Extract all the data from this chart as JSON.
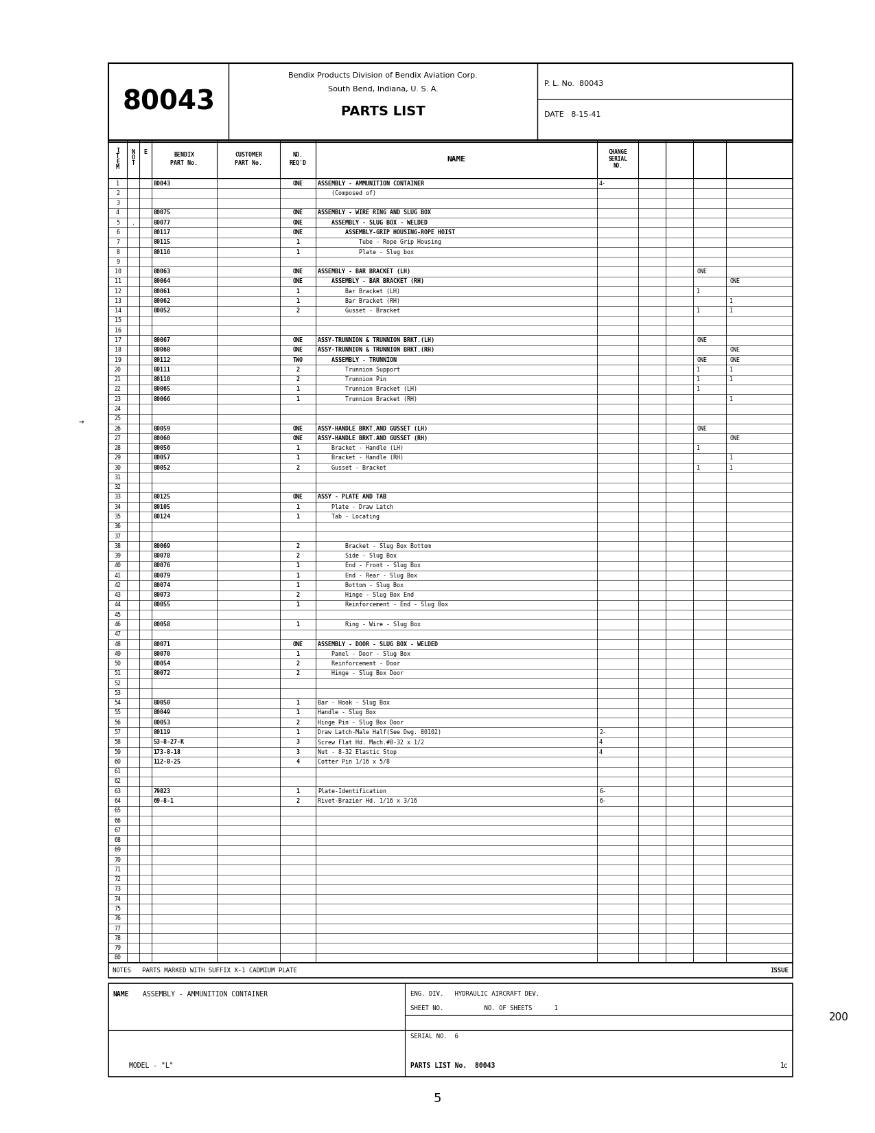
{
  "doc_number": "80043",
  "company_line1": "Bendix Products Division of Bendix Aviation Corp.",
  "company_line2": "South Bend, Indiana, U. S. A.",
  "title": "PARTS LIST",
  "pl_no": "P. L. No.  80043",
  "date": "DATE   8-15-41",
  "rows": [
    {
      "item": "1",
      "note": "",
      "bendix": "80043",
      "reqd": "ONE",
      "name": "ASSEMBLY - AMMUNITION CONTAINER",
      "change": "4-",
      "c3": "",
      "c4": ""
    },
    {
      "item": "2",
      "note": "",
      "bendix": "",
      "reqd": "",
      "name": "    (Composed of)",
      "change": "",
      "c3": "",
      "c4": ""
    },
    {
      "item": "3",
      "note": "",
      "bendix": "",
      "reqd": "",
      "name": "",
      "change": "",
      "c3": "",
      "c4": ""
    },
    {
      "item": "4",
      "note": "",
      "bendix": "80075",
      "reqd": "ONE",
      "name": "ASSEMBLY - WIRE RING AND SLUG BOX",
      "change": "",
      "c3": "",
      "c4": ""
    },
    {
      "item": "5",
      "note": ".",
      "bendix": "80077",
      "reqd": "ONE",
      "name": "    ASSEMBLY - SLUG BOX - WELDED",
      "change": "",
      "c3": "",
      "c4": ""
    },
    {
      "item": "6",
      "note": "",
      "bendix": "80117",
      "reqd": "ONE",
      "name": "        ASSEMBLY-GRIP HOUSING-ROPE HOIST",
      "change": "",
      "c3": "",
      "c4": ""
    },
    {
      "item": "7",
      "note": "",
      "bendix": "80115",
      "reqd": "1",
      "name": "            Tube - Rope Grip Housing",
      "change": "",
      "c3": "",
      "c4": ""
    },
    {
      "item": "8",
      "note": "",
      "bendix": "80116",
      "reqd": "1",
      "name": "            Plate - Slug box",
      "change": "",
      "c3": "",
      "c4": ""
    },
    {
      "item": "9",
      "note": "",
      "bendix": "",
      "reqd": "",
      "name": "",
      "change": "",
      "c3": "",
      "c4": ""
    },
    {
      "item": "10",
      "note": "",
      "bendix": "80063",
      "reqd": "ONE",
      "name": "ASSEMBLY - BAR BRACKET (LH)",
      "change": "",
      "c3": "ONE",
      "c4": ""
    },
    {
      "item": "11",
      "note": "",
      "bendix": "80064",
      "reqd": "ONE",
      "name": "    ASSEMBLY - BAR BRACKET (RH)",
      "change": "",
      "c3": "",
      "c4": "ONE"
    },
    {
      "item": "12",
      "note": "",
      "bendix": "80061",
      "reqd": "1",
      "name": "        Bar Bracket (LH)",
      "change": "",
      "c3": "1",
      "c4": ""
    },
    {
      "item": "13",
      "note": "",
      "bendix": "80062",
      "reqd": "1",
      "name": "        Bar Bracket (RH)",
      "change": "",
      "c3": "",
      "c4": "1"
    },
    {
      "item": "14",
      "note": "",
      "bendix": "80052",
      "reqd": "2",
      "name": "        Gusset - Bracket",
      "change": "",
      "c3": "1",
      "c4": "1"
    },
    {
      "item": "15",
      "note": "",
      "bendix": "",
      "reqd": "",
      "name": "",
      "change": "",
      "c3": "",
      "c4": ""
    },
    {
      "item": "16",
      "note": "",
      "bendix": "",
      "reqd": "",
      "name": "",
      "change": "",
      "c3": "",
      "c4": ""
    },
    {
      "item": "17",
      "note": "",
      "bendix": "80067",
      "reqd": "ONE",
      "name": "ASSY-TRUNNION & TRUNNION BRKT.(LH)",
      "change": "",
      "c3": "ONE",
      "c4": ""
    },
    {
      "item": "18",
      "note": "",
      "bendix": "80068",
      "reqd": "ONE",
      "name": "ASSY-TRUNNION & TRUNNION BRKT.(RH)",
      "change": "",
      "c3": "",
      "c4": "ONE"
    },
    {
      "item": "19",
      "note": "",
      "bendix": "80112",
      "reqd": "TWO",
      "name": "    ASSEMBLY - TRUNNION",
      "change": "",
      "c3": "ONE",
      "c4": "ONE"
    },
    {
      "item": "20",
      "note": "",
      "bendix": "80111",
      "reqd": "2",
      "name": "        Trunnion Support",
      "change": "",
      "c3": "1",
      "c4": "1"
    },
    {
      "item": "21",
      "note": "",
      "bendix": "80110",
      "reqd": "2",
      "name": "        Trunnion Pin",
      "change": "",
      "c3": "1",
      "c4": "1"
    },
    {
      "item": "22",
      "note": "",
      "bendix": "80065",
      "reqd": "1",
      "name": "        Trunnion Bracket (LH)",
      "change": "",
      "c3": "1",
      "c4": ""
    },
    {
      "item": "23",
      "note": "",
      "bendix": "80066",
      "reqd": "1",
      "name": "        Trunnion Bracket (RH)",
      "change": "",
      "c3": "",
      "c4": "1"
    },
    {
      "item": "24",
      "note": "",
      "bendix": "",
      "reqd": "",
      "name": "",
      "change": "",
      "c3": "",
      "c4": ""
    },
    {
      "item": "25",
      "note": "",
      "bendix": "",
      "reqd": "",
      "name": "",
      "change": "",
      "c3": "",
      "c4": ""
    },
    {
      "item": "26",
      "note": "",
      "bendix": "80059",
      "reqd": "ONE",
      "name": "ASSY-HANDLE BRKT.AND GUSSET (LH)",
      "change": "",
      "c3": "ONE",
      "c4": ""
    },
    {
      "item": "27",
      "note": "",
      "bendix": "80060",
      "reqd": "ONE",
      "name": "ASSY-HANDLE BRKT.AND GUSSET (RH)",
      "change": "",
      "c3": "",
      "c4": "ONE"
    },
    {
      "item": "28",
      "note": "",
      "bendix": "80056",
      "reqd": "1",
      "name": "    Bracket - Handle (LH)",
      "change": "",
      "c3": "1",
      "c4": ""
    },
    {
      "item": "29",
      "note": "",
      "bendix": "80057",
      "reqd": "1",
      "name": "    Bracket - Handle (RH)",
      "change": "",
      "c3": "",
      "c4": "1"
    },
    {
      "item": "30",
      "note": "",
      "bendix": "80052",
      "reqd": "2",
      "name": "    Gusset - Bracket",
      "change": "",
      "c3": "1",
      "c4": "1"
    },
    {
      "item": "31",
      "note": "",
      "bendix": "",
      "reqd": "",
      "name": "",
      "change": "",
      "c3": "",
      "c4": ""
    },
    {
      "item": "32",
      "note": "",
      "bendix": "",
      "reqd": "",
      "name": "",
      "change": "",
      "c3": "",
      "c4": ""
    },
    {
      "item": "33",
      "note": "",
      "bendix": "80125",
      "reqd": "ONE",
      "name": "ASSY - PLATE AND TAB",
      "change": "",
      "c3": "",
      "c4": ""
    },
    {
      "item": "34",
      "note": "",
      "bendix": "80105",
      "reqd": "1",
      "name": "    Plate - Draw Latch",
      "change": "",
      "c3": "",
      "c4": ""
    },
    {
      "item": "35",
      "note": "",
      "bendix": "80124",
      "reqd": "1",
      "name": "    Tab - Locating",
      "change": "",
      "c3": "",
      "c4": ""
    },
    {
      "item": "36",
      "note": "",
      "bendix": "",
      "reqd": "",
      "name": "",
      "change": "",
      "c3": "",
      "c4": ""
    },
    {
      "item": "37",
      "note": "",
      "bendix": "",
      "reqd": "",
      "name": "",
      "change": "",
      "c3": "",
      "c4": ""
    },
    {
      "item": "38",
      "note": "",
      "bendix": "80069",
      "reqd": "2",
      "name": "        Bracket - Slug Box Bottom",
      "change": "",
      "c3": "",
      "c4": ""
    },
    {
      "item": "39",
      "note": "",
      "bendix": "80078",
      "reqd": "2",
      "name": "        Side - Slug Box",
      "change": "",
      "c3": "",
      "c4": ""
    },
    {
      "item": "40",
      "note": "",
      "bendix": "80076",
      "reqd": "1",
      "name": "        End - Front - Slug Box",
      "change": "",
      "c3": "",
      "c4": ""
    },
    {
      "item": "41",
      "note": "",
      "bendix": "80079",
      "reqd": "1",
      "name": "        End - Rear - Slug Box",
      "change": "",
      "c3": "",
      "c4": ""
    },
    {
      "item": "42",
      "note": "",
      "bendix": "80074",
      "reqd": "1",
      "name": "        Bottom - Slug Box",
      "change": "",
      "c3": "",
      "c4": ""
    },
    {
      "item": "43",
      "note": "",
      "bendix": "80073",
      "reqd": "2",
      "name": "        Hinge - Slug Box End",
      "change": "",
      "c3": "",
      "c4": ""
    },
    {
      "item": "44",
      "note": "",
      "bendix": "80055",
      "reqd": "1",
      "name": "        Reinforcement - End - Slug Box",
      "change": "",
      "c3": "",
      "c4": ""
    },
    {
      "item": "45",
      "note": "",
      "bendix": "",
      "reqd": "",
      "name": "",
      "change": "",
      "c3": "",
      "c4": ""
    },
    {
      "item": "46",
      "note": "",
      "bendix": "80058",
      "reqd": "1",
      "name": "        Ring - Wire - Slug Box",
      "change": "",
      "c3": "",
      "c4": ""
    },
    {
      "item": "47",
      "note": "",
      "bendix": "",
      "reqd": "",
      "name": "",
      "change": "",
      "c3": "",
      "c4": ""
    },
    {
      "item": "48",
      "note": "",
      "bendix": "80071",
      "reqd": "ONE",
      "name": "ASSEMBLY - DOOR - SLUG BOX - WELDED",
      "change": "",
      "c3": "",
      "c4": ""
    },
    {
      "item": "49",
      "note": "",
      "bendix": "80070",
      "reqd": "1",
      "name": "    Panel - Door - Slug Box",
      "change": "",
      "c3": "",
      "c4": ""
    },
    {
      "item": "50",
      "note": "",
      "bendix": "80054",
      "reqd": "2",
      "name": "    Reinforcement - Door",
      "change": "",
      "c3": "",
      "c4": ""
    },
    {
      "item": "51",
      "note": "",
      "bendix": "80072",
      "reqd": "2",
      "name": "    Hinge - Slug Box Door",
      "change": "",
      "c3": "",
      "c4": ""
    },
    {
      "item": "52",
      "note": "",
      "bendix": "",
      "reqd": "",
      "name": "",
      "change": "",
      "c3": "",
      "c4": ""
    },
    {
      "item": "53",
      "note": "",
      "bendix": "",
      "reqd": "",
      "name": "",
      "change": "",
      "c3": "",
      "c4": ""
    },
    {
      "item": "54",
      "note": "",
      "bendix": "80050",
      "reqd": "1",
      "name": "Bar - Hook - Slug Box",
      "change": "",
      "c3": "",
      "c4": ""
    },
    {
      "item": "55",
      "note": "",
      "bendix": "80049",
      "reqd": "1",
      "name": "Handle - Slug Box",
      "change": "",
      "c3": "",
      "c4": ""
    },
    {
      "item": "56",
      "note": "",
      "bendix": "80053",
      "reqd": "2",
      "name": "Hinge Pin - Slug Box Door",
      "change": "",
      "c3": "",
      "c4": ""
    },
    {
      "item": "57",
      "note": "",
      "bendix": "80119",
      "reqd": "1",
      "name": "Draw Latch-Male Half(See Dwg. 80102)",
      "change": "2-",
      "c3": "",
      "c4": ""
    },
    {
      "item": "58",
      "note": "",
      "bendix": "53-8-27-K",
      "reqd": "3",
      "name": "Screw Flat Hd. Mach.#8-32 x 1/2",
      "change": "4",
      "c3": "",
      "c4": ""
    },
    {
      "item": "59",
      "note": "",
      "bendix": "173-8-18",
      "reqd": "3",
      "name": "Nut - 8-32 Elastic Stop",
      "change": "4",
      "c3": "",
      "c4": ""
    },
    {
      "item": "60",
      "note": "",
      "bendix": "112-8-25",
      "reqd": "4",
      "name": "Cotter Pin 1/16 x 5/8",
      "change": "",
      "c3": "",
      "c4": ""
    },
    {
      "item": "61",
      "note": "",
      "bendix": "",
      "reqd": "",
      "name": "",
      "change": "",
      "c3": "",
      "c4": ""
    },
    {
      "item": "62",
      "note": "",
      "bendix": "",
      "reqd": "",
      "name": "",
      "change": "",
      "c3": "",
      "c4": ""
    },
    {
      "item": "63",
      "note": "",
      "bendix": "79823",
      "reqd": "1",
      "name": "Plate-Identification",
      "change": "6-",
      "c3": "",
      "c4": ""
    },
    {
      "item": "64",
      "note": "",
      "bendix": "69-8-1",
      "reqd": "2",
      "name": "Rivet-Brazier Hd. 1/16 x 3/16",
      "change": "6-",
      "c3": "",
      "c4": ""
    },
    {
      "item": "65",
      "note": "",
      "bendix": "",
      "reqd": "",
      "name": "",
      "change": "",
      "c3": "",
      "c4": ""
    },
    {
      "item": "66",
      "note": "",
      "bendix": "",
      "reqd": "",
      "name": "",
      "change": "",
      "c3": "",
      "c4": ""
    },
    {
      "item": "67",
      "note": "",
      "bendix": "",
      "reqd": "",
      "name": "",
      "change": "",
      "c3": "",
      "c4": ""
    },
    {
      "item": "68",
      "note": "",
      "bendix": "",
      "reqd": "",
      "name": "",
      "change": "",
      "c3": "",
      "c4": ""
    },
    {
      "item": "69",
      "note": "",
      "bendix": "",
      "reqd": "",
      "name": "",
      "change": "",
      "c3": "",
      "c4": ""
    },
    {
      "item": "70",
      "note": "",
      "bendix": "",
      "reqd": "",
      "name": "",
      "change": "",
      "c3": "",
      "c4": ""
    },
    {
      "item": "71",
      "note": "",
      "bendix": "",
      "reqd": "",
      "name": "",
      "change": "",
      "c3": "",
      "c4": ""
    },
    {
      "item": "72",
      "note": "",
      "bendix": "",
      "reqd": "",
      "name": "",
      "change": "",
      "c3": "",
      "c4": ""
    },
    {
      "item": "73",
      "note": "",
      "bendix": "",
      "reqd": "",
      "name": "",
      "change": "",
      "c3": "",
      "c4": ""
    },
    {
      "item": "74",
      "note": "",
      "bendix": "",
      "reqd": "",
      "name": "",
      "change": "",
      "c3": "",
      "c4": ""
    },
    {
      "item": "75",
      "note": "",
      "bendix": "",
      "reqd": "",
      "name": "",
      "change": "",
      "c3": "",
      "c4": ""
    },
    {
      "item": "76",
      "note": "",
      "bendix": "",
      "reqd": "",
      "name": "",
      "change": "",
      "c3": "",
      "c4": ""
    },
    {
      "item": "77",
      "note": "",
      "bendix": "",
      "reqd": "",
      "name": "",
      "change": "",
      "c3": "",
      "c4": ""
    },
    {
      "item": "78",
      "note": "",
      "bendix": "",
      "reqd": "",
      "name": "",
      "change": "",
      "c3": "",
      "c4": ""
    },
    {
      "item": "79",
      "note": "",
      "bendix": "",
      "reqd": "",
      "name": "",
      "change": "",
      "c3": "",
      "c4": ""
    },
    {
      "item": "80",
      "note": "",
      "bendix": "",
      "reqd": "",
      "name": "",
      "change": "",
      "c3": "",
      "c4": ""
    }
  ],
  "notes_text": "NOTES   PARTS MARKED WITH SUFFIX X-1 CADMIUM PLATE",
  "issue_text": "ISSUE",
  "footer_name_label": "NAME",
  "footer_name": "ASSEMBLY - AMMUNITION CONTAINER",
  "footer_model_label": "MODEL - \"L\"",
  "footer_eng_div": "ENG. DIV.   HYDRAULIC AIRCRAFT DEV.",
  "footer_sheet_no": "SHEET NO.           NO. OF SHEETS      1",
  "footer_serial_no": "SERIAL NO.  6",
  "footer_parts_list": "PARTS LIST No.  80043",
  "footer_page": "1c",
  "page_number": "5",
  "handwritten": "200"
}
